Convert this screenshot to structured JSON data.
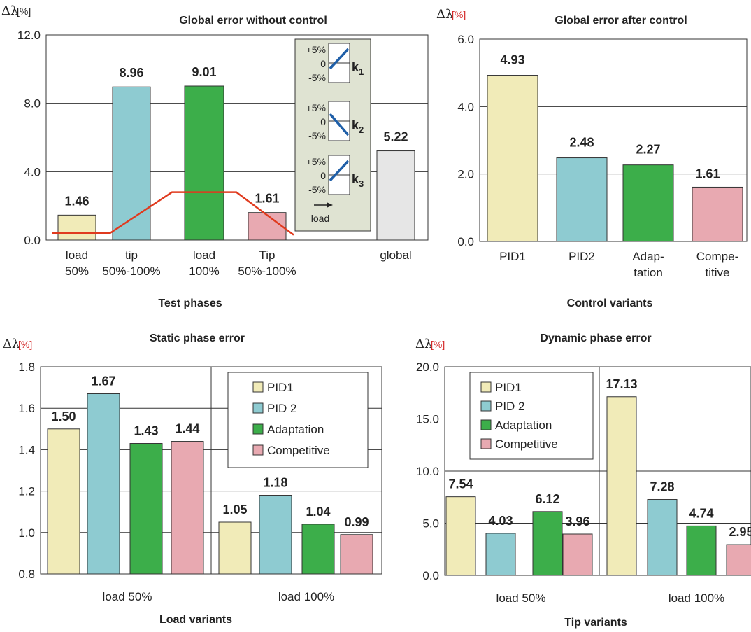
{
  "colors": {
    "pid1": "#f1ebb8",
    "pid2": "#8ecbd1",
    "adaptation": "#3cae4a",
    "competitive": "#e8a9b1",
    "global": "#e6e6e6",
    "red_line": "#e03a1e",
    "unit_red": "#d42a2a",
    "inset_bg": "#dfe3d2",
    "k_line": "#1f5fa8"
  },
  "chart_data": [
    {
      "type": "bar",
      "title": "Global error without control",
      "ylabel": "Δλ",
      "yunit": "[%]",
      "xlabel": "Test phases",
      "ylim": [
        0,
        12
      ],
      "yticks": [
        "0.0",
        "4.0",
        "8.0",
        "12.0"
      ],
      "categories": [
        [
          "load",
          "50%"
        ],
        [
          "tip",
          "50%-100%"
        ],
        [
          "load",
          "100%"
        ],
        [
          "Tip",
          "50%-100%"
        ],
        [
          "global"
        ]
      ],
      "values": [
        1.46,
        8.96,
        9.01,
        1.61,
        5.22
      ],
      "value_labels": [
        "1.46",
        "8.96",
        "9.01",
        "1.61",
        "5.22"
      ],
      "profile_line": [
        0.4,
        0.4,
        2.8,
        2.8,
        0.3
      ],
      "inset": {
        "scale": [
          "+5%",
          "0",
          "-5%"
        ],
        "keys": [
          {
            "k": "k",
            "sub": "1"
          },
          {
            "k": "k",
            "sub": "2"
          },
          {
            "k": "k",
            "sub": "3"
          }
        ],
        "axis_label": "load"
      }
    },
    {
      "type": "bar",
      "title": "Global error after control",
      "ylabel": "Δλ",
      "yunit": "[%]",
      "xlabel": "Control variants",
      "ylim": [
        0,
        6
      ],
      "yticks": [
        "0.0",
        "2.0",
        "4.0",
        "6.0"
      ],
      "categories": [
        [
          "PID1"
        ],
        [
          "PID2"
        ],
        [
          "Adap-",
          "tation"
        ],
        [
          "Compe-",
          "titive"
        ]
      ],
      "values": [
        4.93,
        2.48,
        2.27,
        1.61
      ],
      "value_labels": [
        "4.93",
        "2.48",
        "2.27",
        "1.61"
      ]
    },
    {
      "type": "bar",
      "title": "Static phase error",
      "ylabel": "Δλ",
      "yunit": "[%]",
      "xlabel": "Load variants",
      "ylim": [
        0.8,
        1.8
      ],
      "yticks": [
        "0.8",
        "1.0",
        "1.2",
        "1.4",
        "1.6",
        "1.8"
      ],
      "groups": [
        "load 50%",
        "load 100%"
      ],
      "series": [
        {
          "name": "PID1",
          "values": [
            1.5,
            1.05
          ],
          "labels": [
            "1.50",
            "1.05"
          ]
        },
        {
          "name": "PID 2",
          "values": [
            1.67,
            1.18
          ],
          "labels": [
            "1.67",
            "1.18"
          ]
        },
        {
          "name": "Adaptation",
          "values": [
            1.43,
            1.04
          ],
          "labels": [
            "1.43",
            "1.04"
          ]
        },
        {
          "name": "Competitive",
          "values": [
            1.44,
            0.99
          ],
          "labels": [
            "1.44",
            "0.99"
          ]
        }
      ]
    },
    {
      "type": "bar",
      "title": "Dynamic phase error",
      "ylabel": "Δλ",
      "yunit": "[%]",
      "xlabel": "Tip variants",
      "ylim": [
        0,
        20
      ],
      "yticks": [
        "0.0",
        "5.0",
        "10.0",
        "15.0",
        "20.0"
      ],
      "groups": [
        "load 50%",
        "load 100%"
      ],
      "series": [
        {
          "name": "PID1",
          "values": [
            7.54,
            17.13
          ],
          "labels": [
            "7.54",
            "17.13"
          ]
        },
        {
          "name": "PID 2",
          "values": [
            4.03,
            7.28
          ],
          "labels": [
            "4.03",
            "7.28"
          ]
        },
        {
          "name": "Adaptation",
          "values": [
            6.12,
            4.74
          ],
          "labels": [
            "6.12",
            "4.74"
          ]
        },
        {
          "name": "Competitive",
          "values": [
            3.96,
            2.95
          ],
          "labels": [
            "3.96",
            "2.95"
          ]
        }
      ]
    }
  ]
}
